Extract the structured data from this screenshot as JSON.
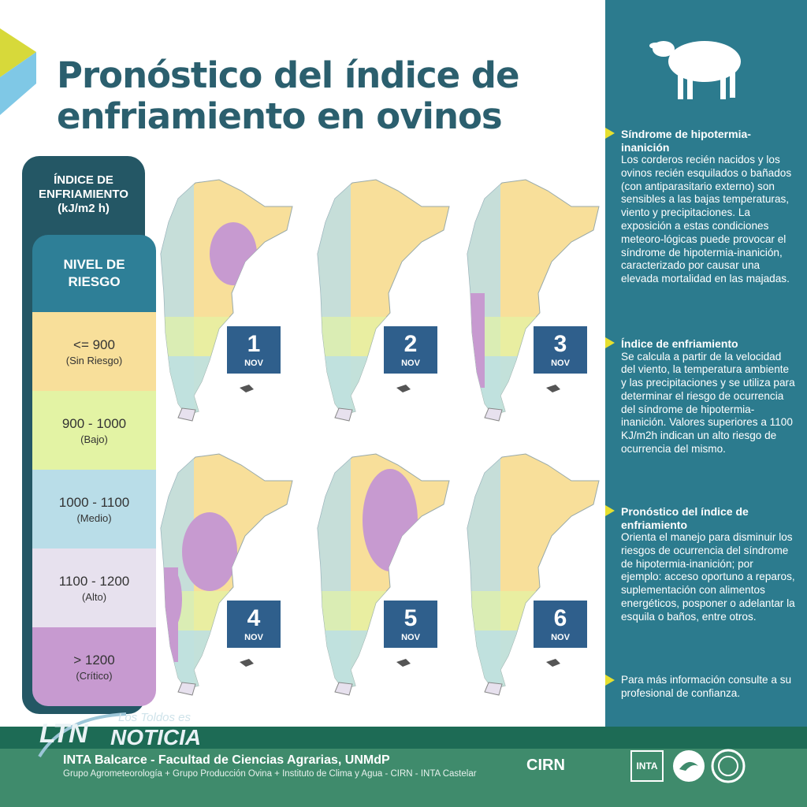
{
  "title": {
    "line1": "Pronóstico del índice de",
    "line2": "enfriamiento en ovinos"
  },
  "legend": {
    "header_line1": "ÍNDICE DE",
    "header_line2": "ENFRIAMIENTO",
    "header_line3": "(kJ/m2 h)",
    "risk_line1": "NIVEL DE",
    "risk_line2": "RIESGO",
    "levels": [
      {
        "range": "<= 900",
        "label": "(Sin Riesgo)",
        "color": "#f8df9a"
      },
      {
        "range": "900 - 1000",
        "label": "(Bajo)",
        "color": "#e3f3a4"
      },
      {
        "range": "1000 - 1100",
        "label": "(Medio)",
        "color": "#b9dde8"
      },
      {
        "range": "1100 - 1200",
        "label": "(Alto)",
        "color": "#e7e1ee"
      },
      {
        "range": "> 1200",
        "label": "(Crítico)",
        "color": "#c79ad0"
      }
    ]
  },
  "maps": [
    {
      "day": "1",
      "month": "NOV"
    },
    {
      "day": "2",
      "month": "NOV"
    },
    {
      "day": "3",
      "month": "NOV"
    },
    {
      "day": "4",
      "month": "NOV"
    },
    {
      "day": "5",
      "month": "NOV"
    },
    {
      "day": "6",
      "month": "NOV"
    }
  ],
  "panel": {
    "sections": [
      {
        "title": "Síndrome de hipotermia-inanición",
        "body": "Los corderos recién nacidos y los ovinos recién esquilados o bañados (con antiparasitario externo) son sensibles a las bajas temperaturas, viento y precipitaciones. La exposición a estas condiciones meteoro-lógicas puede provocar el síndrome de hipotermia-inanición, caracterizado por causar una elevada mortalidad en las majadas."
      },
      {
        "title": "Índice de enfriamiento",
        "body": "Se calcula a partir de la velocidad del viento, la temperatura ambiente y las precipitaciones y se utiliza para determinar el riesgo de ocurrencia del síndrome de hipotermia-inanición. Valores superiores a 1100 KJ/m2h indican un alto riesgo de ocurrencia del mismo."
      },
      {
        "title": "Pronóstico del índice de enfriamiento",
        "body": "Orienta el manejo para disminuir los riesgos de ocurrencia del síndrome de hipotermia-inanición; por ejemplo: acceso oportuno a reparos, suplementación con alimentos energéticos, posponer o adelantar la esquila o baños, entre otros."
      },
      {
        "title": "",
        "body": "Para más información consulte a su profesional de confianza."
      }
    ]
  },
  "footer": {
    "main": "INTA Balcarce - Facultad de Ciencias Agrarias, UNMdP",
    "sub": "Grupo Agrometeorología + Grupo Producción Ovina + Instituto de Clima y Agua - CIRN - INTA Castelar",
    "cirn": "CIRN",
    "inta": "INTA"
  },
  "watermark": {
    "small": "Los Toldos es",
    "ltn": "LTN",
    "noticia": "NOTICIA"
  },
  "colors": {
    "title": "#2b5f6e",
    "panel": "#2c7b8e",
    "badge": "#2f5f8c",
    "accent": "#e6e030"
  }
}
